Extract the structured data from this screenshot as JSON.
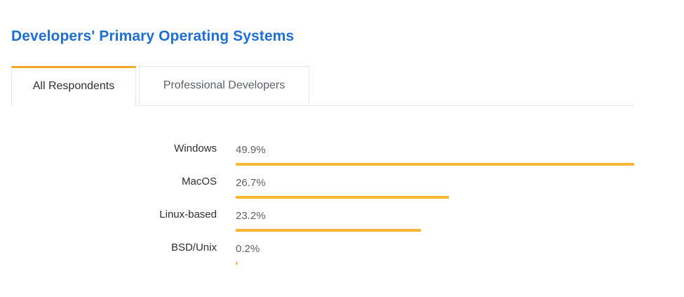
{
  "title": "Developers' Primary Operating Systems",
  "tabs": [
    {
      "label": "All Respondents",
      "active": true
    },
    {
      "label": "Professional Developers",
      "active": false
    }
  ],
  "colors": {
    "title": "#1f6fd1",
    "bar": "#f7b733",
    "tab_accent": "#f5a623"
  },
  "chart_data": {
    "type": "bar",
    "orientation": "horizontal",
    "categories": [
      "Windows",
      "MacOS",
      "Linux-based",
      "BSD/Unix"
    ],
    "values": [
      49.9,
      26.7,
      23.2,
      0.2
    ],
    "value_labels": [
      "49.9%",
      "26.7%",
      "23.2%",
      "0.2%"
    ],
    "unit": "%",
    "xlim": [
      0,
      49.9
    ],
    "grid": false,
    "legend": "none"
  }
}
